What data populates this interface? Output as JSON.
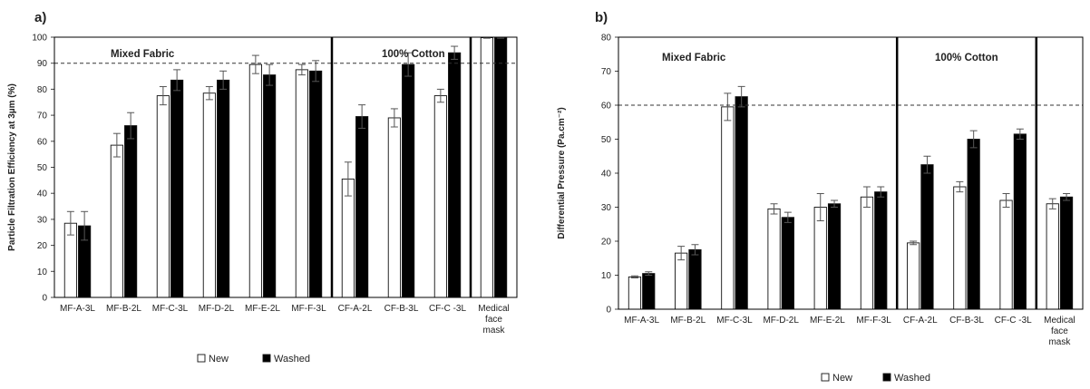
{
  "chart_data": [
    {
      "type": "bar",
      "panel_label": "a)",
      "ylabel": "Particle Filtration Efficiency at 3µm (%)",
      "xlabel": "",
      "ylim": [
        0,
        100
      ],
      "y_ticks": [
        0,
        10,
        20,
        30,
        40,
        50,
        60,
        70,
        80,
        90,
        100
      ],
      "reference_line": 90,
      "categories": [
        [
          "MF-A-3L"
        ],
        [
          "MF-B-2L"
        ],
        [
          "MF-C-3L"
        ],
        [
          "MF-D-2L"
        ],
        [
          "MF-E-2L"
        ],
        [
          "MF-F-3L"
        ],
        [
          "CF-A-2L"
        ],
        [
          "CF-B-3L"
        ],
        [
          "CF-C -3L"
        ],
        [
          "Medical",
          "face",
          "mask"
        ]
      ],
      "regions": [
        "Mixed Fabric",
        "100% Cotton"
      ],
      "series": [
        {
          "name": "New",
          "color": "#ffffff",
          "values": [
            28.5,
            58.5,
            77.5,
            78.5,
            89.5,
            87.5,
            45.5,
            69.0,
            77.5,
            99.8
          ],
          "errors": [
            4.5,
            4.5,
            3.5,
            2.5,
            3.5,
            2.0,
            6.5,
            3.5,
            2.5,
            0.2
          ]
        },
        {
          "name": "Washed",
          "color": "#000000",
          "values": [
            27.5,
            66.0,
            83.5,
            83.5,
            85.5,
            87.0,
            69.5,
            89.5,
            94.0,
            99.8
          ],
          "errors": [
            5.5,
            5.0,
            4.0,
            3.5,
            4.0,
            4.0,
            4.5,
            4.5,
            2.5,
            0.2
          ]
        }
      ],
      "grid": false,
      "legend": "bottom"
    },
    {
      "type": "bar",
      "panel_label": "b)",
      "ylabel": "Differential Pressure (Pa.cm⁻²)",
      "xlabel": "",
      "ylim": [
        0,
        80
      ],
      "y_ticks": [
        0,
        10,
        20,
        30,
        40,
        50,
        60,
        70,
        80
      ],
      "reference_line": 60,
      "categories": [
        [
          "MF-A-3L"
        ],
        [
          "MF-B-2L"
        ],
        [
          "MF-C-3L"
        ],
        [
          "MF-D-2L"
        ],
        [
          "MF-E-2L"
        ],
        [
          "MF-F-3L"
        ],
        [
          "CF-A-2L"
        ],
        [
          "CF-B-3L"
        ],
        [
          "CF-C -3L"
        ],
        [
          "Medical",
          "face",
          "mask"
        ]
      ],
      "regions": [
        "Mixed Fabric",
        "100% Cotton"
      ],
      "series": [
        {
          "name": "New",
          "color": "#ffffff",
          "values": [
            9.5,
            16.5,
            59.5,
            29.5,
            30.0,
            33.0,
            19.5,
            36.0,
            32.0,
            31.0
          ],
          "errors": [
            0.3,
            2.0,
            4.0,
            1.5,
            4.0,
            3.0,
            0.5,
            1.5,
            2.0,
            1.5
          ]
        },
        {
          "name": "Washed",
          "color": "#000000",
          "values": [
            10.5,
            17.5,
            62.5,
            27.0,
            31.0,
            34.5,
            42.5,
            50.0,
            51.5,
            33.0
          ],
          "errors": [
            0.5,
            1.5,
            3.0,
            1.5,
            1.0,
            1.5,
            2.5,
            2.5,
            1.5,
            1.0
          ]
        }
      ],
      "grid": false,
      "legend": "bottom"
    }
  ]
}
